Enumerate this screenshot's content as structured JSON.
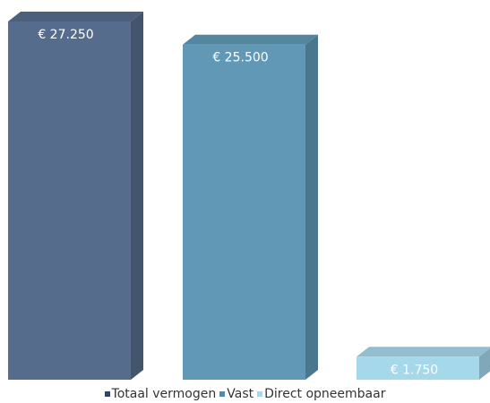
{
  "chart_data": {
    "type": "bar",
    "categories": [
      "Totaal vermogen",
      "Vast",
      "Direct opneembaar"
    ],
    "values": [
      27250,
      25500,
      1750
    ],
    "data_labels": [
      "€ 27.250",
      "€ 25.500",
      "€ 1.750"
    ],
    "colors": [
      "#566c8c",
      "#6098b6",
      "#a6d8ec"
    ],
    "ylim": [
      0,
      27250
    ],
    "grid": false,
    "legend": {
      "position": "bottom",
      "entries": [
        "Totaal vermogen",
        "Vast",
        "Direct opneembaar"
      ]
    },
    "style": "3d"
  }
}
